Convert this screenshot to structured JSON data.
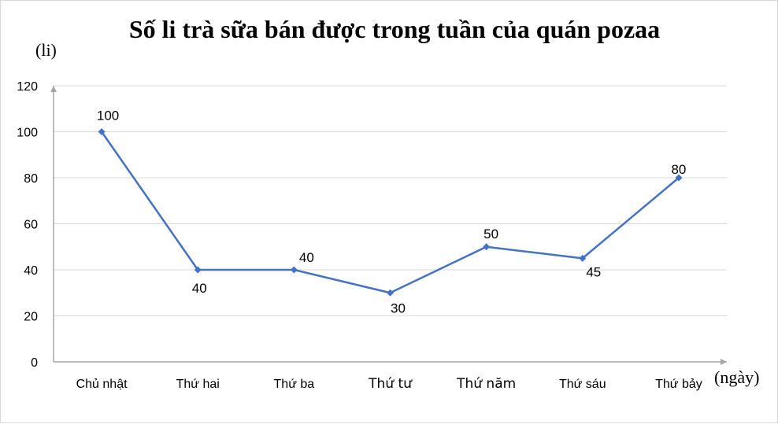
{
  "chart_data": {
    "type": "line",
    "title": "Số li trà sữa bán được trong tuần của quán pozaa",
    "ylabel": "(li)",
    "xlabel": "(ngày)",
    "categories": [
      "Chủ nhật",
      "Thứ hai",
      "Thứ ba",
      "Thứ tư",
      "Thứ năm",
      "Thứ sáu",
      "Thứ bảy"
    ],
    "values": [
      100,
      40,
      40,
      30,
      50,
      45,
      80
    ],
    "data_labels": [
      "100",
      "40",
      "40",
      "30",
      "50",
      "45",
      "80"
    ],
    "ylim": [
      0,
      120
    ],
    "yticks": [
      "0",
      "20",
      "40",
      "60",
      "80",
      "100",
      "120"
    ],
    "grid": true,
    "series_color": "#4472C4",
    "grid_color": "#d9d9d9",
    "axis_color": "#a6a6a6"
  }
}
